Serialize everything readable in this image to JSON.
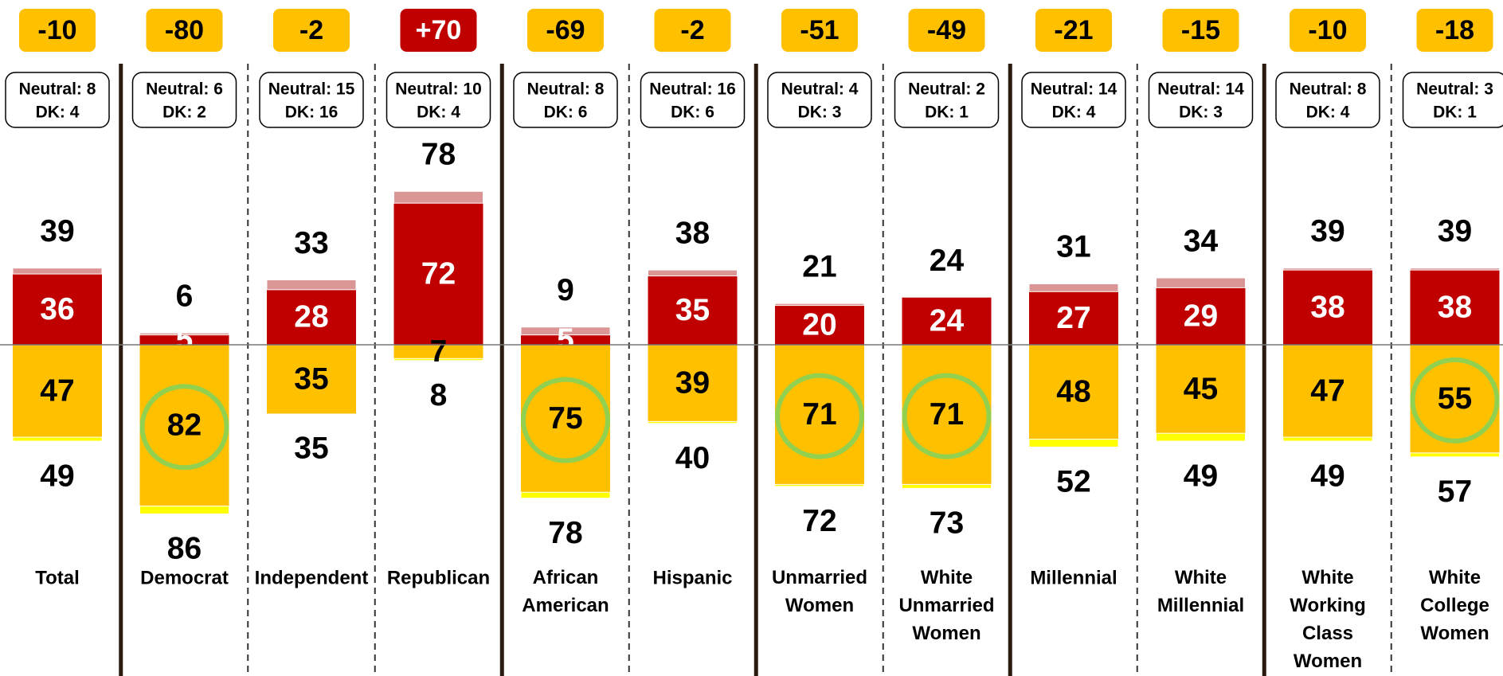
{
  "chart_data": {
    "type": "diverging_bar",
    "categories": [
      "Total",
      "Democrat",
      "Independent",
      "Republican",
      "African\nAmerican",
      "Hispanic",
      "Unmarried\nWomen",
      "White\nUnmarried\nWomen",
      "Millennial",
      "White\nMillennial",
      "White\nWorking\nClass\nWomen",
      "White\nCollege\nWomen"
    ],
    "net": [
      -10,
      -80,
      -2,
      70,
      -69,
      -2,
      -51,
      -49,
      -21,
      -15,
      -10,
      -18
    ],
    "net_labels": [
      "-10",
      "-80",
      "-2",
      "+70",
      "-69",
      "-2",
      "-51",
      "-49",
      "-21",
      "-15",
      "-10",
      "-18"
    ],
    "neutral": [
      "Neutral: 8",
      "Neutral: 6",
      "Neutral: 15",
      "Neutral: 10",
      "Neutral: 8",
      "Neutral: 16",
      "Neutral: 4",
      "Neutral: 2",
      "Neutral: 14",
      "Neutral: 14",
      "Neutral: 8",
      "Neutral: 3"
    ],
    "dk": [
      "DK: 4",
      "DK: 2",
      "DK: 16",
      "DK: 4",
      "DK: 6",
      "DK: 6",
      "DK: 3",
      "DK: 1",
      "DK: 4",
      "DK: 3",
      "DK: 4",
      "DK: 1"
    ],
    "top_total": [
      39,
      6,
      33,
      78,
      9,
      38,
      21,
      24,
      31,
      34,
      39,
      39
    ],
    "top_strong": [
      36,
      5,
      28,
      72,
      5,
      35,
      20,
      24,
      27,
      29,
      38,
      38
    ],
    "top_weak": [
      3,
      1,
      5,
      6,
      4,
      3,
      1,
      0,
      4,
      5,
      1,
      1
    ],
    "bottom_total": [
      49,
      86,
      35,
      8,
      78,
      40,
      72,
      73,
      52,
      49,
      49,
      57
    ],
    "bottom_strong": [
      47,
      82,
      35,
      7,
      75,
      39,
      71,
      71,
      48,
      45,
      47,
      55
    ],
    "bottom_weak": [
      2,
      4,
      0,
      1,
      3,
      1,
      1,
      2,
      4,
      4,
      2,
      2
    ],
    "highlight": [
      false,
      true,
      false,
      false,
      true,
      false,
      true,
      true,
      false,
      false,
      false,
      true
    ],
    "colors": {
      "top_strong": "#C00000",
      "top_weak": "#D99694",
      "bottom_strong": "#FFC000",
      "bottom_weak": "#FFFF00",
      "highlight": "#92D050",
      "positive_net": "#C00000",
      "negative_net": "#FFC000"
    }
  }
}
